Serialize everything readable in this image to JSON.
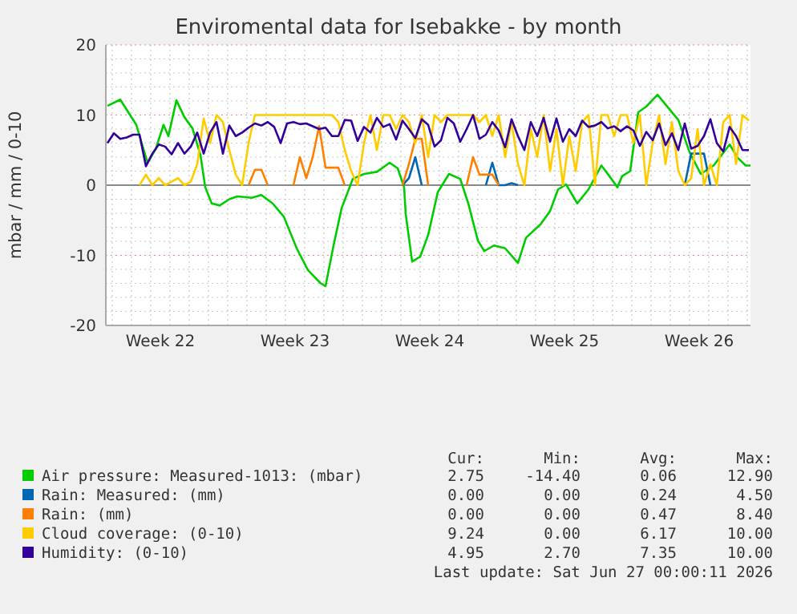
{
  "chart_data": {
    "type": "line",
    "title": "Enviromental data for Isebakke - by month",
    "ylabel": "mbar / mm / 0-10",
    "xlim": [
      "2026-05-25T16:00",
      "2026-06-28T04:00"
    ],
    "ylim": [
      -20,
      20
    ],
    "xticks": [
      {
        "value": "2026-05-26",
        "label": null
      },
      {
        "value": "2026-05-27",
        "label": null
      },
      {
        "value": "2026-05-28",
        "label": null
      },
      {
        "value": "2026-05-28T12:00",
        "label": "Week 22"
      },
      {
        "value": "2026-05-29",
        "label": null
      },
      {
        "value": "2026-05-30",
        "label": null
      },
      {
        "value": "2026-05-31",
        "label": null
      },
      {
        "value": "2026-06-01",
        "label": null
      },
      {
        "value": "2026-06-02",
        "label": null
      },
      {
        "value": "2026-06-03",
        "label": null
      },
      {
        "value": "2026-06-04",
        "label": null
      },
      {
        "value": "2026-06-04T12:00",
        "label": "Week 23"
      },
      {
        "value": "2026-06-05",
        "label": null
      },
      {
        "value": "2026-06-06",
        "label": null
      },
      {
        "value": "2026-06-07",
        "label": null
      },
      {
        "value": "2026-06-08",
        "label": null
      },
      {
        "value": "2026-06-09",
        "label": null
      },
      {
        "value": "2026-06-10",
        "label": null
      },
      {
        "value": "2026-06-11",
        "label": null
      },
      {
        "value": "2026-06-11T12:00",
        "label": "Week 24"
      },
      {
        "value": "2026-06-12",
        "label": null
      },
      {
        "value": "2026-06-13",
        "label": null
      },
      {
        "value": "2026-06-14",
        "label": null
      },
      {
        "value": "2026-06-15",
        "label": null
      },
      {
        "value": "2026-06-16",
        "label": null
      },
      {
        "value": "2026-06-17",
        "label": null
      },
      {
        "value": "2026-06-18",
        "label": null
      },
      {
        "value": "2026-06-18T12:00",
        "label": "Week 25"
      },
      {
        "value": "2026-06-19",
        "label": null
      },
      {
        "value": "2026-06-20",
        "label": null
      },
      {
        "value": "2026-06-21",
        "label": null
      },
      {
        "value": "2026-06-22",
        "label": null
      },
      {
        "value": "2026-06-23",
        "label": null
      },
      {
        "value": "2026-06-24",
        "label": null
      },
      {
        "value": "2026-06-25",
        "label": null
      },
      {
        "value": "2026-06-25T12:00",
        "label": "Week 26"
      },
      {
        "value": "2026-06-26",
        "label": null
      },
      {
        "value": "2026-06-27",
        "label": null
      },
      {
        "value": "2026-06-28",
        "label": null
      }
    ],
    "yticks": [
      -20,
      {
        "value": -18,
        "label": null
      },
      {
        "value": -16,
        "label": null
      },
      {
        "value": -14,
        "label": null
      },
      {
        "value": -12,
        "label": null
      },
      -10,
      {
        "value": -8,
        "label": null
      },
      {
        "value": -6,
        "label": null
      },
      {
        "value": -4,
        "label": null
      },
      {
        "value": -2,
        "label": null
      },
      0,
      {
        "value": 2,
        "label": null
      },
      {
        "value": 4,
        "label": null
      },
      {
        "value": 6,
        "label": null
      },
      {
        "value": 8,
        "label": null
      },
      10,
      {
        "value": 12,
        "label": null
      },
      {
        "value": 14,
        "label": null
      },
      {
        "value": 16,
        "label": null
      },
      {
        "value": 18,
        "label": null
      },
      20
    ],
    "grid": true,
    "legend": "bottom",
    "marker": "none",
    "line_style": "solid",
    "x": [
      "2026-05-25T18:00",
      "2026-05-26T02:00",
      "2026-05-26T10:00",
      "2026-05-26T18:00",
      "2026-05-27T02:00",
      "2026-05-27T10:00",
      "2026-05-27T18:00",
      "2026-05-28T02:00",
      "2026-05-28T10:00",
      "2026-05-28T18:00",
      "2026-05-29T02:00",
      "2026-05-29T10:00",
      "2026-05-29T18:00",
      "2026-05-30T02:00",
      "2026-05-30T10:00",
      "2026-05-30T18:00",
      "2026-05-31T02:00",
      "2026-05-31T10:00",
      "2026-05-31T18:00",
      "2026-06-01T02:00",
      "2026-06-01T10:00",
      "2026-06-01T18:00",
      "2026-06-02T02:00",
      "2026-06-02T10:00",
      "2026-06-02T18:00",
      "2026-06-03T02:00",
      "2026-06-03T10:00",
      "2026-06-03T18:00",
      "2026-06-04T02:00",
      "2026-06-04T10:00",
      "2026-06-04T18:00",
      "2026-06-05T02:00",
      "2026-06-05T10:00",
      "2026-06-05T18:00",
      "2026-06-06T02:00",
      "2026-06-06T10:00",
      "2026-06-06T18:00",
      "2026-06-07T02:00",
      "2026-06-07T10:00",
      "2026-06-07T18:00",
      "2026-06-08T02:00",
      "2026-06-08T10:00",
      "2026-06-08T18:00",
      "2026-06-09T02:00",
      "2026-06-09T10:00",
      "2026-06-09T18:00",
      "2026-06-10T02:00",
      "2026-06-10T10:00",
      "2026-06-10T18:00",
      "2026-06-11T02:00",
      "2026-06-11T10:00",
      "2026-06-11T18:00",
      "2026-06-12T02:00",
      "2026-06-12T10:00",
      "2026-06-12T18:00",
      "2026-06-13T02:00",
      "2026-06-13T10:00",
      "2026-06-13T18:00",
      "2026-06-14T02:00",
      "2026-06-14T10:00",
      "2026-06-14T18:00",
      "2026-06-15T02:00",
      "2026-06-15T10:00",
      "2026-06-15T18:00",
      "2026-06-16T02:00",
      "2026-06-16T10:00",
      "2026-06-16T18:00",
      "2026-06-17T02:00",
      "2026-06-17T10:00",
      "2026-06-17T18:00",
      "2026-06-18T02:00",
      "2026-06-18T10:00",
      "2026-06-18T18:00",
      "2026-06-19T02:00",
      "2026-06-19T10:00",
      "2026-06-19T18:00",
      "2026-06-20T02:00",
      "2026-06-20T10:00",
      "2026-06-20T18:00",
      "2026-06-21T02:00",
      "2026-06-21T10:00",
      "2026-06-21T18:00",
      "2026-06-22T02:00",
      "2026-06-22T10:00",
      "2026-06-22T18:00",
      "2026-06-23T02:00",
      "2026-06-23T10:00",
      "2026-06-23T18:00",
      "2026-06-24T02:00",
      "2026-06-24T10:00",
      "2026-06-24T18:00",
      "2026-06-25T02:00",
      "2026-06-25T10:00",
      "2026-06-25T18:00",
      "2026-06-26T02:00",
      "2026-06-26T10:00",
      "2026-06-26T18:00",
      "2026-06-27T02:00",
      "2026-06-27T10:00",
      "2026-06-27T18:00",
      "2026-06-28T02:00"
    ],
    "series": [
      {
        "name": "Air pressure: Measured-1013: (mbar)",
        "color": "#00cc00",
        "x": [
          "2026-05-25T18:00",
          "2026-05-26T10:00",
          "2026-05-26T20:00",
          "2026-05-27T06:00",
          "2026-05-27T20:00",
          "2026-05-28T06:00",
          "2026-05-28T16:00",
          "2026-05-28T22:00",
          "2026-05-29T08:00",
          "2026-05-29T18:00",
          "2026-05-30T04:00",
          "2026-05-30T14:00",
          "2026-05-30T20:00",
          "2026-05-31T04:00",
          "2026-05-31T14:00",
          "2026-06-01T02:00",
          "2026-06-01T12:00",
          "2026-06-02T06:00",
          "2026-06-02T18:00",
          "2026-06-03T08:00",
          "2026-06-03T22:00",
          "2026-06-04T14:00",
          "2026-06-05T04:00",
          "2026-06-05T20:00",
          "2026-06-06T02:00",
          "2026-06-06T12:00",
          "2026-06-06T22:00",
          "2026-06-07T12:00",
          "2026-06-08T02:00",
          "2026-06-08T18:00",
          "2026-06-09T10:00",
          "2026-06-09T20:00",
          "2026-06-10T04:00",
          "2026-06-10T06:00",
          "2026-06-10T14:00",
          "2026-06-11T00:00",
          "2026-06-11T10:00",
          "2026-06-11T22:00",
          "2026-06-12T12:00",
          "2026-06-13T02:00",
          "2026-06-13T12:00",
          "2026-06-14T00:00",
          "2026-06-14T08:00",
          "2026-06-14T20:00",
          "2026-06-15T10:00",
          "2026-06-16T02:00",
          "2026-06-16T12:00",
          "2026-06-17T06:00",
          "2026-06-17T18:00",
          "2026-06-18T04:00",
          "2026-06-18T14:00",
          "2026-06-19T04:00",
          "2026-06-19T18:00",
          "2026-06-20T10:00",
          "2026-06-20T20:00",
          "2026-06-21T06:00",
          "2026-06-21T12:00",
          "2026-06-21T22:00",
          "2026-06-22T08:00",
          "2026-06-22T18:00",
          "2026-06-23T08:00",
          "2026-06-23T18:00",
          "2026-06-24T10:00",
          "2026-06-25T00:00",
          "2026-06-25T14:00",
          "2026-06-26T06:00",
          "2026-06-27T02:00",
          "2026-06-27T12:00",
          "2026-06-27T22:00",
          "2026-06-28T04:00"
        ],
        "values": [
          11.3,
          12.2,
          10.4,
          8.6,
          3.2,
          5.1,
          8.6,
          7.0,
          12.1,
          9.7,
          8.1,
          4.3,
          -0.3,
          -2.6,
          -2.9,
          -2.0,
          -1.6,
          -1.8,
          -1.4,
          -2.6,
          -4.5,
          -9.0,
          -12.1,
          -14.0,
          -14.4,
          -8.6,
          -3.3,
          0.9,
          1.6,
          1.9,
          3.2,
          2.4,
          -0.3,
          -4.1,
          -10.9,
          -10.2,
          -7.1,
          -1.0,
          1.6,
          0.9,
          -2.6,
          -7.9,
          -9.4,
          -8.6,
          -9.0,
          -11.1,
          -7.5,
          -5.6,
          -3.7,
          -0.6,
          0.1,
          -2.6,
          -0.6,
          2.8,
          1.3,
          -0.3,
          1.3,
          2.0,
          10.4,
          11.2,
          12.9,
          11.5,
          9.3,
          4.7,
          1.6,
          2.8,
          5.8,
          3.9,
          2.8,
          2.8
        ]
      },
      {
        "name": "Rain: Measured: (mm)",
        "color": "#0066b3",
        "values": [
          null,
          null,
          null,
          null,
          null,
          null,
          null,
          null,
          null,
          null,
          null,
          null,
          null,
          null,
          null,
          null,
          null,
          null,
          null,
          null,
          null,
          null,
          null,
          null,
          null,
          null,
          null,
          null,
          null,
          null,
          null,
          null,
          null,
          null,
          null,
          null,
          null,
          null,
          null,
          null,
          null,
          null,
          null,
          null,
          null,
          null,
          0,
          1.0,
          4.0,
          0,
          null,
          null,
          null,
          null,
          null,
          null,
          null,
          null,
          null,
          0,
          3.2,
          0,
          0,
          0.3,
          0,
          null,
          null,
          null,
          null,
          null,
          null,
          null,
          null,
          null,
          null,
          null,
          null,
          null,
          null,
          null,
          null,
          null,
          null,
          null,
          null,
          null,
          null,
          null,
          null,
          null,
          0,
          4.5,
          4.5,
          4.5,
          0,
          null,
          null,
          null,
          null,
          null,
          null
        ]
      },
      {
        "name": "Rain: (mm)",
        "color": "#ff8000",
        "values": [
          null,
          null,
          null,
          null,
          null,
          null,
          null,
          null,
          null,
          null,
          null,
          null,
          null,
          null,
          null,
          null,
          null,
          null,
          null,
          null,
          null,
          null,
          0,
          2.2,
          2.2,
          0,
          null,
          null,
          null,
          0,
          4.0,
          1.0,
          4.0,
          8.4,
          2.5,
          2.5,
          2.5,
          0,
          null,
          null,
          null,
          null,
          null,
          null,
          null,
          null,
          0,
          3.0,
          6.6,
          6.6,
          0,
          null,
          null,
          null,
          null,
          null,
          0,
          4.0,
          1.5,
          1.5,
          1.5,
          0,
          null,
          null,
          null,
          null,
          null,
          null,
          null,
          null,
          null,
          null,
          null,
          null,
          null,
          null,
          null,
          null,
          null,
          null,
          null,
          null,
          null,
          null,
          null,
          null,
          null,
          null,
          null,
          null,
          null,
          null,
          null,
          null,
          null,
          null,
          null,
          null,
          null,
          null,
          null
        ]
      },
      {
        "name": "Cloud coverage: (0-10)",
        "color": "#ffcc00",
        "values": [
          null,
          null,
          null,
          null,
          null,
          0,
          1.5,
          0,
          1,
          0,
          0.5,
          1,
          0,
          0.5,
          3,
          9.5,
          6,
          10,
          9,
          5,
          1.5,
          0,
          6,
          10,
          10,
          10,
          10,
          10,
          10,
          10,
          10,
          10,
          10,
          10,
          10,
          10,
          9,
          5,
          2,
          0,
          6,
          10,
          5,
          10,
          10,
          8,
          10,
          9,
          6,
          10,
          4,
          10,
          9,
          10,
          10,
          10,
          10,
          10,
          9,
          10,
          7,
          10,
          4,
          9,
          3,
          0,
          8,
          4,
          10,
          2,
          8,
          0,
          7,
          2,
          9,
          10,
          0,
          10,
          10,
          7,
          10,
          10,
          6,
          10,
          0,
          6,
          10,
          3,
          9,
          2,
          0,
          1,
          8,
          0,
          3,
          0,
          9,
          10,
          3,
          10,
          9.2
        ]
      },
      {
        "name": "Humidity: (0-10)",
        "color": "#330099",
        "values": [
          6.0,
          7.4,
          6.6,
          6.8,
          7.2,
          7.2,
          2.7,
          4.5,
          5.8,
          5.5,
          4.4,
          6.0,
          4.5,
          5.5,
          7.5,
          4.5,
          7.5,
          9.0,
          4.5,
          8.5,
          7.0,
          7.5,
          8.2,
          8.8,
          8.5,
          9.0,
          8.3,
          6.0,
          8.8,
          9.0,
          8.7,
          8.8,
          8.4,
          8.0,
          8.2,
          7.0,
          7.0,
          9.3,
          9.2,
          6.3,
          8.3,
          7.5,
          9.6,
          8.3,
          8.7,
          6.5,
          9.2,
          8.0,
          6.7,
          9.4,
          8.6,
          5.5,
          6.4,
          9.6,
          8.8,
          6.2,
          8.0,
          10.0,
          6.6,
          7.2,
          9.0,
          7.8,
          5.4,
          9.4,
          7.0,
          5.0,
          9.0,
          7.0,
          9.6,
          6.2,
          9.5,
          6.2,
          8.0,
          7.0,
          9.2,
          8.3,
          8.5,
          9.0,
          8.1,
          8.4,
          7.7,
          8.4,
          7.8,
          5.6,
          7.6,
          6.4,
          8.8,
          5.7,
          7.4,
          5.0,
          8.8,
          5.2,
          5.6,
          7.0,
          9.4,
          6.0,
          4.8,
          8.3,
          7.0,
          5.0,
          5.0
        ]
      }
    ],
    "annotations": [
      "Cur:",
      "Min:",
      "Avg:",
      "Max:",
      "2.75",
      "-14.40",
      "0.06",
      "12.90",
      "0.00",
      "0.00",
      "0.24",
      "4.50",
      "0.00",
      "0.00",
      "0.47",
      "8.40",
      "9.24",
      "0.00",
      "6.17",
      "10.00",
      "4.95",
      "2.70",
      "7.35",
      "10.00",
      "Last update: Sat Jun 27 00:00:11 2026"
    ]
  }
}
